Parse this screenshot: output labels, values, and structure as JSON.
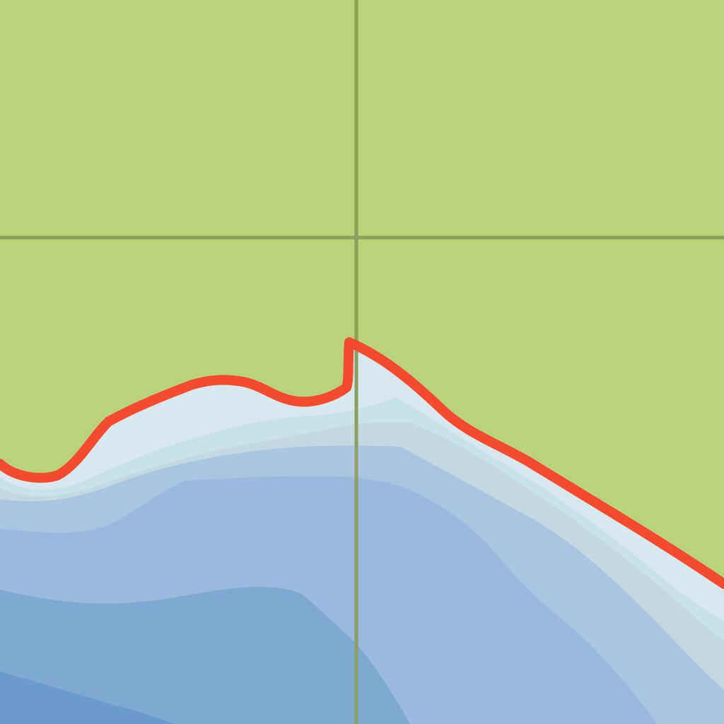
{
  "map": {
    "colors": {
      "land": "#bad379",
      "water_level_1": "#d7e8ef",
      "water_level_2": "#c8e2ea",
      "water_level_3": "#c2d8e3",
      "water_level_4": "#aac5e0",
      "water_level_5": "#9ab9dc",
      "water_level_6": "#7fa8d2",
      "water_level_7": "#6b9bcc",
      "grid_line": "#8b9f5f",
      "boundary_line": "#f44b2f"
    },
    "layers": [
      "land",
      "water-depth-contours",
      "grid-lines",
      "boundary-line"
    ]
  }
}
